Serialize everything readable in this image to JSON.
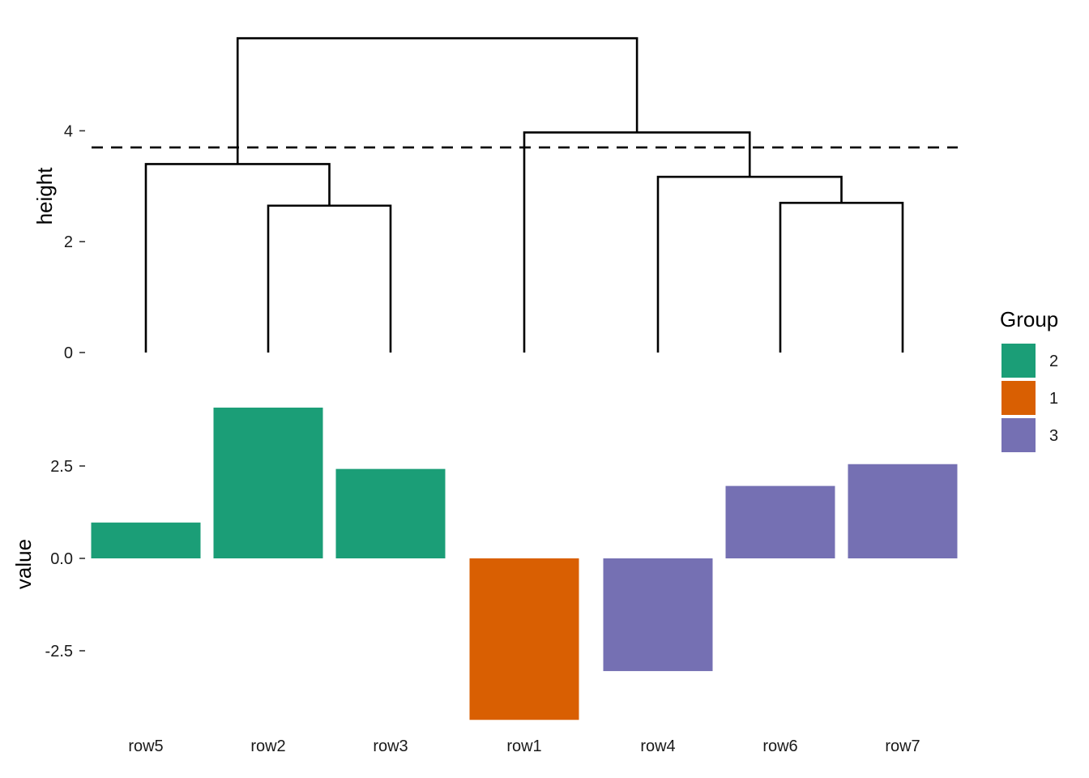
{
  "chart_data": [
    {
      "type": "dendrogram",
      "ylabel": "height",
      "yticks": [
        0,
        2,
        4
      ],
      "ylim": [
        0,
        5.7
      ],
      "leaves": [
        "row5",
        "row2",
        "row3",
        "row1",
        "row4",
        "row6",
        "row7"
      ],
      "merges": [
        {
          "left": "row2",
          "right": "row3",
          "height": 2.65
        },
        {
          "left": "row6",
          "right": "row7",
          "height": 2.7
        },
        {
          "left": "row4",
          "right": "row6+row7",
          "height": 3.17
        },
        {
          "left": "row5",
          "right": "row2+row3",
          "height": 3.4
        },
        {
          "left": "row1",
          "right": "row4+row6+row7",
          "height": 3.97
        },
        {
          "left": "row5+row2+row3",
          "right": "row1+row4+row6+row7",
          "height": 5.67
        }
      ],
      "cut_height": 3.7,
      "cut_line_style": "dashed"
    },
    {
      "type": "bar",
      "ylabel": "value",
      "yticks": [
        -2.5,
        0.0,
        2.5
      ],
      "ytick_labels": [
        "-2.5",
        "0.0",
        "2.5"
      ],
      "ylim": [
        -4.4,
        4.1
      ],
      "categories": [
        "row5",
        "row2",
        "row3",
        "row1",
        "row4",
        "row6",
        "row7"
      ],
      "values": [
        0.97,
        4.08,
        2.42,
        -4.37,
        -3.05,
        1.96,
        2.55
      ],
      "groups": [
        "2",
        "2",
        "2",
        "1",
        "3",
        "3",
        "3"
      ],
      "legend": {
        "title": "Group",
        "position": "right",
        "entries": [
          {
            "label": "2",
            "color": "#1B9E77"
          },
          {
            "label": "1",
            "color": "#D95F02"
          },
          {
            "label": "3",
            "color": "#7570B3"
          }
        ]
      },
      "grid": false
    }
  ]
}
